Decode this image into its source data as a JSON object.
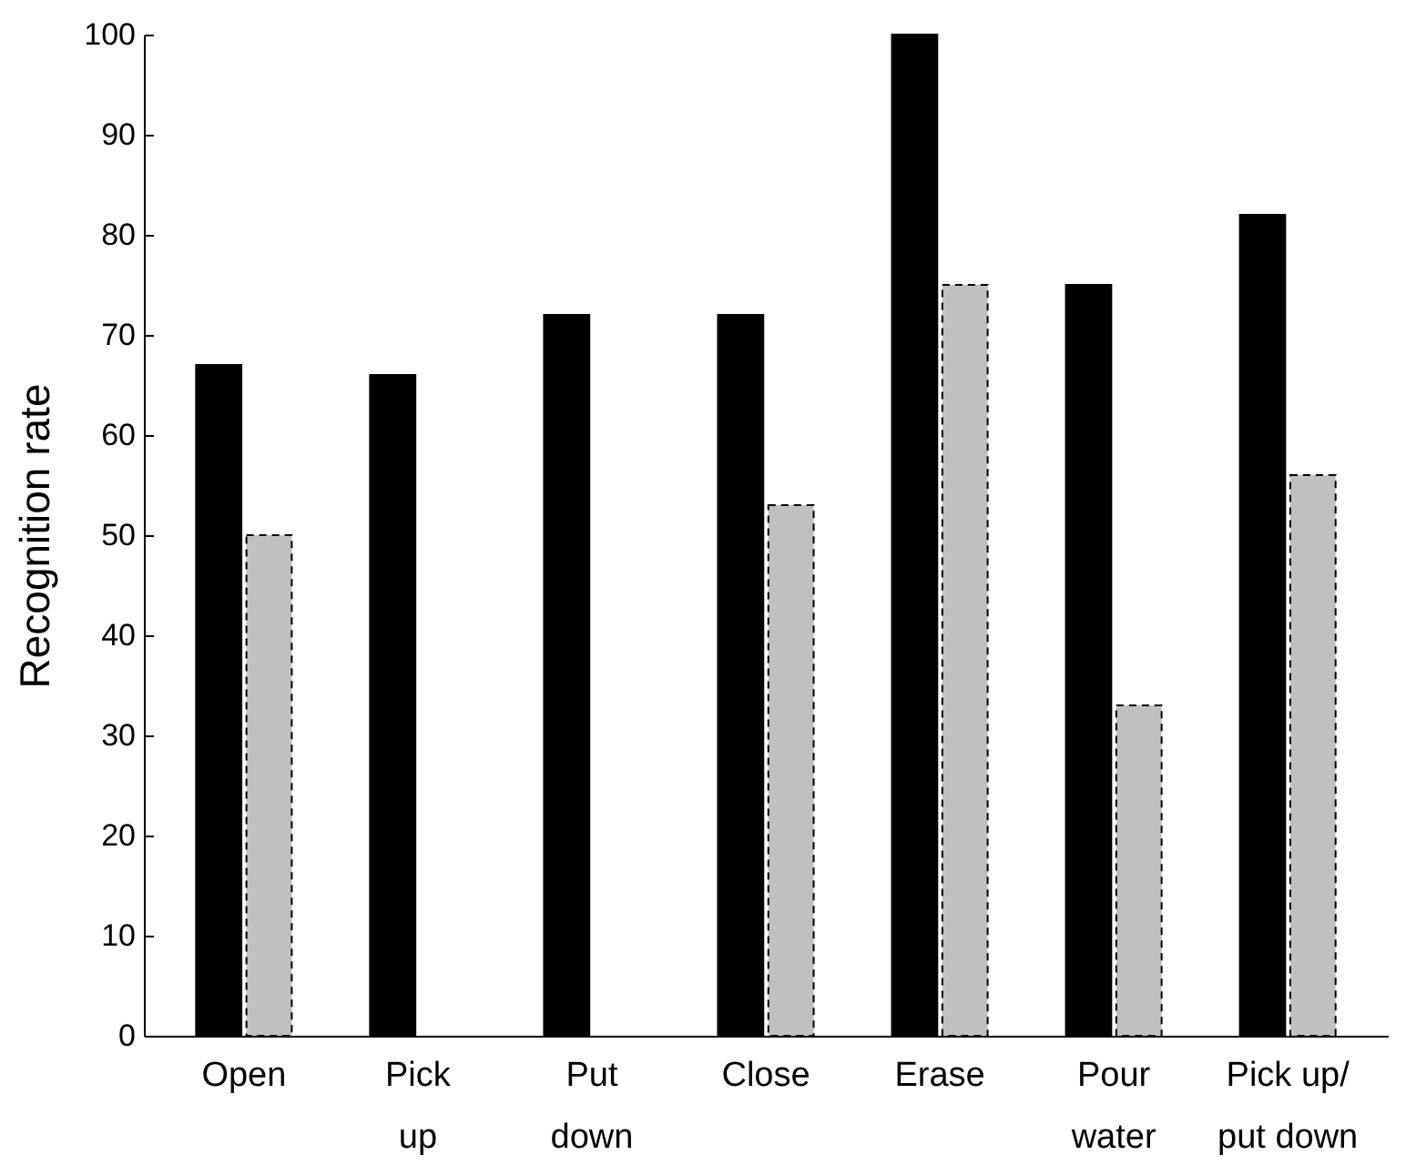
{
  "chart_data": {
    "type": "bar",
    "ylabel": "Recognition rate",
    "categories": [
      "Open",
      "Pick up",
      "Put down",
      "Close",
      "Erase",
      "Pour water",
      "Pick up/ put down"
    ],
    "series": [
      {
        "color": "#000000",
        "values": [
          67,
          66,
          72,
          72,
          100,
          75,
          82
        ]
      },
      {
        "color": "#c0c0c0",
        "line_style": "dashed",
        "values": [
          50,
          null,
          null,
          53,
          75,
          33,
          56
        ]
      }
    ],
    "ylim": [
      0,
      100
    ],
    "yticks": [
      0,
      10,
      20,
      30,
      40,
      50,
      60,
      70,
      80,
      90,
      100
    ]
  }
}
